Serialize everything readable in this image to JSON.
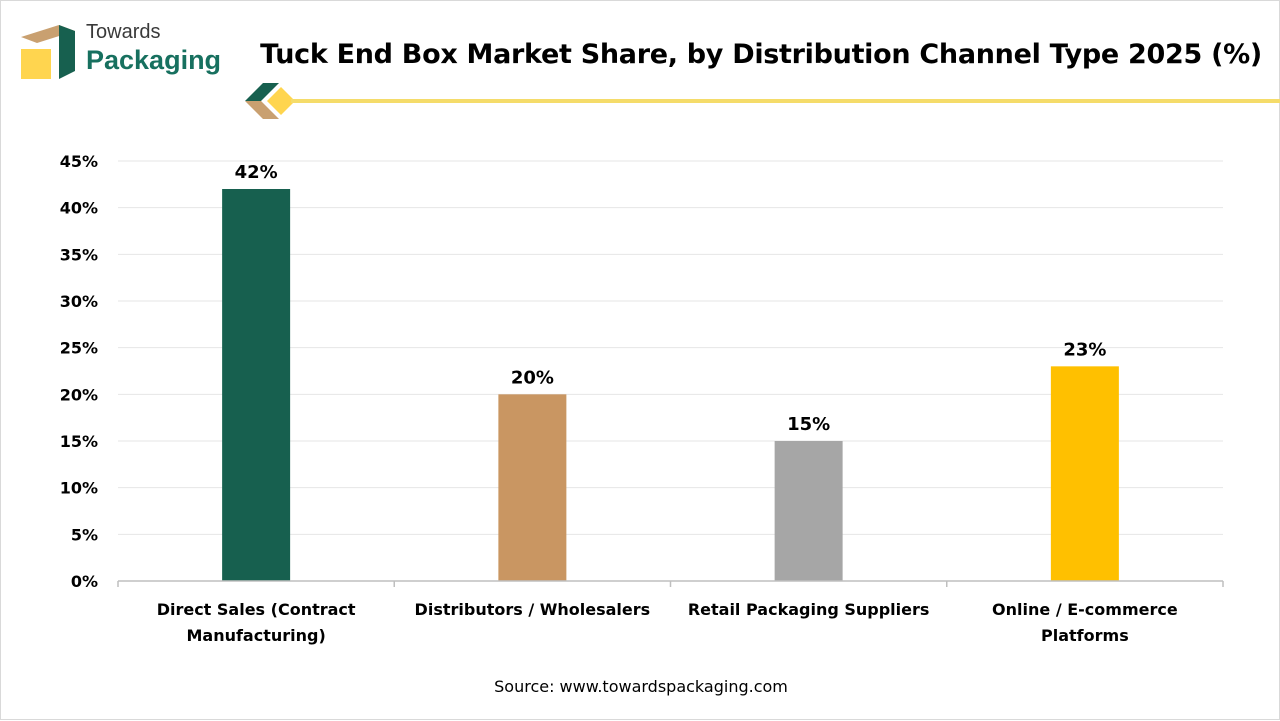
{
  "brand": {
    "line1": "Towards",
    "line2": "Packaging"
  },
  "colors": {
    "green": "#17604f",
    "tan": "#c99662",
    "gray": "#a6a6a6",
    "yellow": "#ffc000",
    "accent_line": "#f5dc6a"
  },
  "source": "Source: www.towardspackaging.com",
  "chart_data": {
    "type": "bar",
    "title": "Tuck End Box Market Share, by Distribution Channel Type 2025 (%)",
    "categories": [
      [
        "Direct Sales (Contract",
        "Manufacturing)"
      ],
      [
        "Distributors / Wholesalers"
      ],
      [
        "Retail Packaging Suppliers"
      ],
      [
        "Online / E-commerce",
        "Platforms"
      ]
    ],
    "values": [
      42,
      20,
      15,
      23
    ],
    "data_labels": [
      "42%",
      "20%",
      "15%",
      "23%"
    ],
    "bar_colors": [
      "#17604f",
      "#c99662",
      "#a6a6a6",
      "#ffc000"
    ],
    "y_ticks": [
      "0%",
      "5%",
      "10%",
      "15%",
      "20%",
      "25%",
      "30%",
      "35%",
      "40%",
      "45%"
    ],
    "ylim": [
      0,
      45
    ],
    "grid": true,
    "legend": "none"
  }
}
